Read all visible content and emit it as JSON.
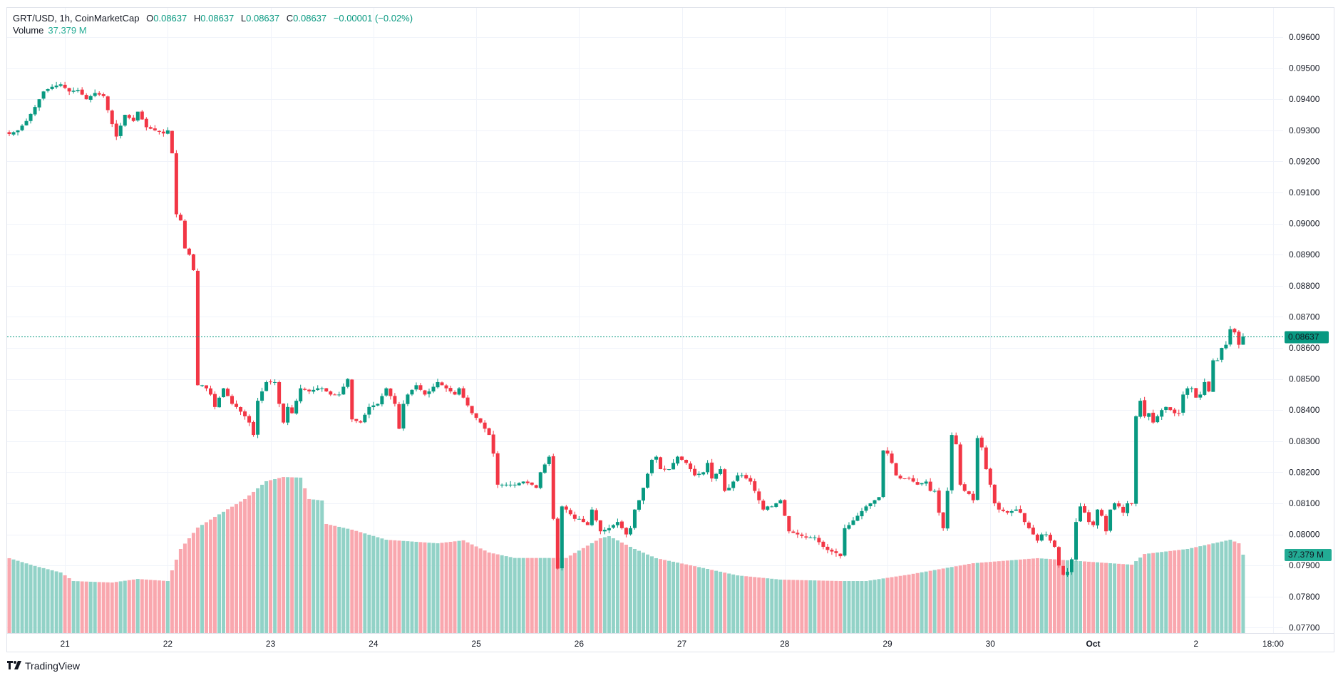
{
  "header": {
    "symbol_line": "GRT/USD, 1h, CoinMarketCap",
    "open_label": "O",
    "open_value": "0.08637",
    "high_label": "H",
    "high_value": "0.08637",
    "low_label": "L",
    "low_value": "0.08637",
    "close_label": "C",
    "close_value": "0.08637",
    "change": "−0.00001 (−0.02%)",
    "volume_label": "Volume",
    "volume_value": "37.379 M"
  },
  "price_badge": "0.08637",
  "volume_badge": "37.379 M",
  "branding": "TradingView",
  "colors": {
    "up": "#089981",
    "down": "#f23645",
    "volume_up": "#92d2c7",
    "volume_down": "#f9a7ae",
    "grid": "#f0f3fa",
    "price_line": "#089981"
  },
  "chart_data": {
    "type": "candlestick",
    "title": "GRT/USD, 1h, CoinMarketCap",
    "interval": "1h",
    "ylim": [
      0.0768,
      0.09645
    ],
    "y_ticks": [
      "0.09600",
      "0.09500",
      "0.09400",
      "0.09300",
      "0.09200",
      "0.09100",
      "0.09000",
      "0.08900",
      "0.08800",
      "0.08700",
      "0.08600",
      "0.08500",
      "0.08400",
      "0.08300",
      "0.08200",
      "0.08100",
      "0.08000",
      "0.07900",
      "0.07800",
      "0.07700"
    ],
    "x_ticks": [
      {
        "label": "21",
        "hour": 13,
        "bold": false
      },
      {
        "label": "22",
        "hour": 37,
        "bold": false
      },
      {
        "label": "23",
        "hour": 61,
        "bold": false
      },
      {
        "label": "24",
        "hour": 85,
        "bold": false
      },
      {
        "label": "25",
        "hour": 109,
        "bold": false
      },
      {
        "label": "26",
        "hour": 133,
        "bold": false
      },
      {
        "label": "27",
        "hour": 157,
        "bold": false
      },
      {
        "label": "28",
        "hour": 181,
        "bold": false
      },
      {
        "label": "29",
        "hour": 205,
        "bold": false
      },
      {
        "label": "30",
        "hour": 229,
        "bold": false
      },
      {
        "label": "Oct",
        "hour": 253,
        "bold": true
      },
      {
        "label": "2",
        "hour": 277,
        "bold": false
      },
      {
        "label": "18:00",
        "hour": 295,
        "bold": false
      }
    ],
    "last_price": 0.08637,
    "candle_count": 289,
    "close_keypoints": [
      [
        0,
        0.09288
      ],
      [
        2,
        0.093
      ],
      [
        4,
        0.0933
      ],
      [
        6,
        0.09375
      ],
      [
        8,
        0.09425
      ],
      [
        10,
        0.0944
      ],
      [
        12,
        0.09448
      ],
      [
        14,
        0.09425
      ],
      [
        16,
        0.0943
      ],
      [
        18,
        0.094
      ],
      [
        20,
        0.0942
      ],
      [
        22,
        0.0941
      ],
      [
        24,
        0.0932
      ],
      [
        25,
        0.0928
      ],
      [
        27,
        0.0935
      ],
      [
        29,
        0.0933
      ],
      [
        30,
        0.0936
      ],
      [
        32,
        0.0931
      ],
      [
        34,
        0.093
      ],
      [
        36,
        0.0929
      ],
      [
        37,
        0.093
      ],
      [
        38,
        0.09226
      ],
      [
        39,
        0.0903
      ],
      [
        40,
        0.0901
      ],
      [
        41,
        0.0892
      ],
      [
        42,
        0.089
      ],
      [
        43,
        0.0885
      ],
      [
        44,
        0.0848
      ],
      [
        45,
        0.0848
      ],
      [
        46,
        0.0847
      ],
      [
        47,
        0.0845
      ],
      [
        48,
        0.0841
      ],
      [
        50,
        0.0847
      ],
      [
        52,
        0.0842
      ],
      [
        53,
        0.0841
      ],
      [
        55,
        0.0838
      ],
      [
        56,
        0.0836
      ],
      [
        57,
        0.0832
      ],
      [
        58,
        0.0843
      ],
      [
        60,
        0.0849
      ],
      [
        62,
        0.0849
      ],
      [
        63,
        0.0842
      ],
      [
        64,
        0.0836
      ],
      [
        65,
        0.0841
      ],
      [
        66,
        0.0839
      ],
      [
        68,
        0.0847
      ],
      [
        70,
        0.0846
      ],
      [
        72,
        0.0847
      ],
      [
        73,
        0.0847
      ],
      [
        75,
        0.0845
      ],
      [
        77,
        0.0845
      ],
      [
        79,
        0.085
      ],
      [
        80,
        0.0837
      ],
      [
        82,
        0.0836
      ],
      [
        84,
        0.0841
      ],
      [
        86,
        0.0842
      ],
      [
        88,
        0.0847
      ],
      [
        90,
        0.0842
      ],
      [
        91,
        0.0834
      ],
      [
        92,
        0.0842
      ],
      [
        93,
        0.0845
      ],
      [
        95,
        0.0848
      ],
      [
        97,
        0.0845
      ],
      [
        98,
        0.0846
      ],
      [
        100,
        0.0849
      ],
      [
        102,
        0.0847
      ],
      [
        104,
        0.0845
      ],
      [
        105,
        0.0847
      ],
      [
        106,
        0.0844
      ],
      [
        108,
        0.0839
      ],
      [
        110,
        0.0836
      ],
      [
        112,
        0.0832
      ],
      [
        113,
        0.0826
      ],
      [
        114,
        0.0816
      ],
      [
        116,
        0.0816
      ],
      [
        118,
        0.0816
      ],
      [
        120,
        0.0817
      ],
      [
        122,
        0.0816
      ],
      [
        123,
        0.0815
      ],
      [
        124,
        0.082
      ],
      [
        126,
        0.0825
      ],
      [
        127,
        0.0805
      ],
      [
        128,
        0.0789
      ],
      [
        129,
        0.0809
      ],
      [
        130,
        0.0808
      ],
      [
        132,
        0.0805
      ],
      [
        133,
        0.0805
      ],
      [
        135,
        0.0803
      ],
      [
        136,
        0.0808
      ],
      [
        138,
        0.0801
      ],
      [
        140,
        0.0802
      ],
      [
        142,
        0.0804
      ],
      [
        144,
        0.08
      ],
      [
        145,
        0.0802
      ],
      [
        146,
        0.0808
      ],
      [
        147,
        0.0811
      ],
      [
        148,
        0.0815
      ],
      [
        150,
        0.0824
      ],
      [
        151,
        0.0825
      ],
      [
        152,
        0.0821
      ],
      [
        154,
        0.0821
      ],
      [
        156,
        0.0825
      ],
      [
        158,
        0.0823
      ],
      [
        160,
        0.0819
      ],
      [
        162,
        0.082
      ],
      [
        163,
        0.0823
      ],
      [
        164,
        0.0818
      ],
      [
        166,
        0.0821
      ],
      [
        167,
        0.0814
      ],
      [
        168,
        0.0815
      ],
      [
        170,
        0.0819
      ],
      [
        171,
        0.0819
      ],
      [
        173,
        0.0817
      ],
      [
        175,
        0.0811
      ],
      [
        176,
        0.0808
      ],
      [
        177,
        0.0809
      ],
      [
        178,
        0.0809
      ],
      [
        180,
        0.0811
      ],
      [
        182,
        0.0801
      ],
      [
        184,
        0.08
      ],
      [
        186,
        0.0799
      ],
      [
        188,
        0.0799
      ],
      [
        190,
        0.0796
      ],
      [
        191,
        0.0795
      ],
      [
        193,
        0.0794
      ],
      [
        194,
        0.0793
      ],
      [
        195,
        0.0802
      ],
      [
        196,
        0.0803
      ],
      [
        198,
        0.0806
      ],
      [
        200,
        0.0809
      ],
      [
        202,
        0.0811
      ],
      [
        203,
        0.0812
      ],
      [
        204,
        0.0827
      ],
      [
        205,
        0.0826
      ],
      [
        206,
        0.0823
      ],
      [
        207,
        0.0819
      ],
      [
        208,
        0.0818
      ],
      [
        210,
        0.0818
      ],
      [
        212,
        0.0816
      ],
      [
        214,
        0.0817
      ],
      [
        215,
        0.0814
      ],
      [
        216,
        0.0814
      ],
      [
        217,
        0.0807
      ],
      [
        218,
        0.0802
      ],
      [
        219,
        0.0814
      ],
      [
        220,
        0.0832
      ],
      [
        221,
        0.0829
      ],
      [
        222,
        0.0816
      ],
      [
        223,
        0.0814
      ],
      [
        224,
        0.0813
      ],
      [
        225,
        0.0811
      ],
      [
        226,
        0.0831
      ],
      [
        227,
        0.0828
      ],
      [
        228,
        0.0821
      ],
      [
        229,
        0.0816
      ],
      [
        230,
        0.081
      ],
      [
        231,
        0.0808
      ],
      [
        233,
        0.0807
      ],
      [
        235,
        0.0808
      ],
      [
        236,
        0.0807
      ],
      [
        237,
        0.0804
      ],
      [
        238,
        0.0802
      ],
      [
        240,
        0.0798
      ],
      [
        241,
        0.08
      ],
      [
        242,
        0.08
      ],
      [
        243,
        0.0798
      ],
      [
        244,
        0.0796
      ],
      [
        245,
        0.079
      ],
      [
        246,
        0.0787
      ],
      [
        247,
        0.0788
      ],
      [
        248,
        0.0792
      ],
      [
        249,
        0.0804
      ],
      [
        250,
        0.0809
      ],
      [
        251,
        0.0807
      ],
      [
        252,
        0.0804
      ],
      [
        253,
        0.0803
      ],
      [
        254,
        0.0808
      ],
      [
        255,
        0.0806
      ],
      [
        256,
        0.0801
      ],
      [
        257,
        0.0808
      ],
      [
        258,
        0.081
      ],
      [
        259,
        0.0809
      ],
      [
        260,
        0.0807
      ],
      [
        261,
        0.081
      ],
      [
        262,
        0.081
      ],
      [
        263,
        0.0838
      ],
      [
        264,
        0.0843
      ],
      [
        265,
        0.0838
      ],
      [
        266,
        0.0839
      ],
      [
        267,
        0.0836
      ],
      [
        268,
        0.0838
      ],
      [
        269,
        0.084
      ],
      [
        270,
        0.0841
      ],
      [
        271,
        0.084
      ],
      [
        272,
        0.0839
      ],
      [
        273,
        0.0839
      ],
      [
        274,
        0.0845
      ],
      [
        275,
        0.0847
      ],
      [
        276,
        0.0847
      ],
      [
        277,
        0.0844
      ],
      [
        278,
        0.0845
      ],
      [
        279,
        0.0849
      ],
      [
        280,
        0.0846
      ],
      [
        281,
        0.0856
      ],
      [
        282,
        0.0856
      ],
      [
        283,
        0.086
      ],
      [
        284,
        0.0861
      ],
      [
        285,
        0.0866
      ],
      [
        286,
        0.0865
      ],
      [
        287,
        0.0861
      ],
      [
        288,
        0.08637
      ]
    ],
    "volume_unit": "M",
    "volume_keypoints": [
      [
        0,
        35.7
      ],
      [
        6,
        32
      ],
      [
        12,
        28.9
      ],
      [
        15,
        24.8
      ],
      [
        24,
        24.1
      ],
      [
        30,
        25.8
      ],
      [
        37,
        24.8
      ],
      [
        38,
        29.9
      ],
      [
        40,
        40.1
      ],
      [
        44,
        50.3
      ],
      [
        48,
        55.4
      ],
      [
        55,
        63.9
      ],
      [
        60,
        72.4
      ],
      [
        64,
        74.4
      ],
      [
        68,
        74.1
      ],
      [
        70,
        63.9
      ],
      [
        73,
        63.2
      ],
      [
        74,
        52.0
      ],
      [
        80,
        49.3
      ],
      [
        88,
        44.5
      ],
      [
        100,
        42.8
      ],
      [
        106,
        44.2
      ],
      [
        112,
        38.4
      ],
      [
        118,
        35.8
      ],
      [
        130,
        35.8
      ],
      [
        138,
        45.2
      ],
      [
        140,
        46.2
      ],
      [
        146,
        40.1
      ],
      [
        151,
        35.7
      ],
      [
        160,
        31.9
      ],
      [
        170,
        27.5
      ],
      [
        180,
        25.5
      ],
      [
        194,
        24.8
      ],
      [
        200,
        24.8
      ],
      [
        210,
        27.9
      ],
      [
        225,
        33.3
      ],
      [
        240,
        35.7
      ],
      [
        250,
        34.3
      ],
      [
        262,
        32.6
      ],
      [
        265,
        37.7
      ],
      [
        275,
        40.1
      ],
      [
        285,
        44.5
      ],
      [
        287,
        42.8
      ],
      [
        288,
        37.379
      ]
    ],
    "volume_max": 78
  }
}
